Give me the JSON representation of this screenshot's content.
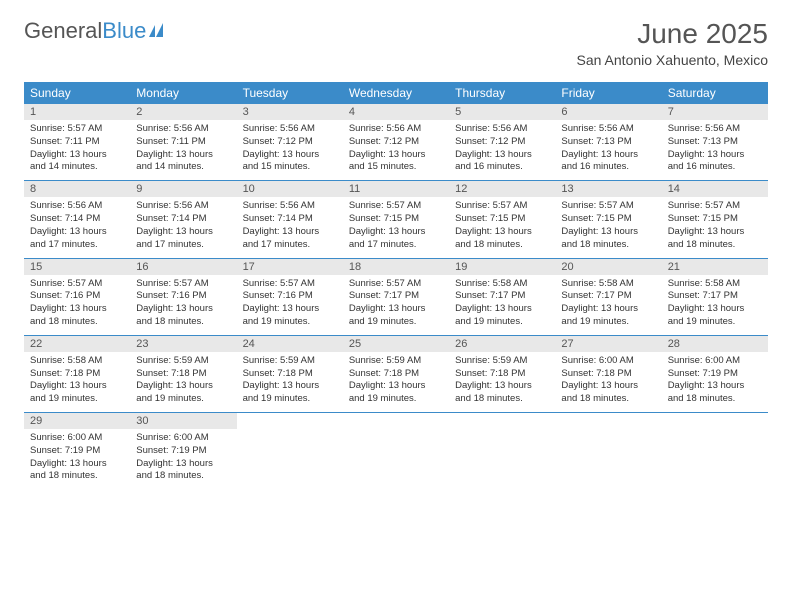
{
  "logo": {
    "text1": "General",
    "text2": "Blue",
    "icon_color": "#3b8bc9"
  },
  "header": {
    "month_title": "June 2025",
    "location": "San Antonio Xahuento, Mexico"
  },
  "colors": {
    "accent": "#3b8bc9",
    "header_bg": "#3b8bc9",
    "daynum_bg": "#e8e8e8",
    "text": "#333333"
  },
  "day_names": [
    "Sunday",
    "Monday",
    "Tuesday",
    "Wednesday",
    "Thursday",
    "Friday",
    "Saturday"
  ],
  "weeks": [
    [
      {
        "num": "1",
        "sunrise": "Sunrise: 5:57 AM",
        "sunset": "Sunset: 7:11 PM",
        "daylight": "Daylight: 13 hours and 14 minutes."
      },
      {
        "num": "2",
        "sunrise": "Sunrise: 5:56 AM",
        "sunset": "Sunset: 7:11 PM",
        "daylight": "Daylight: 13 hours and 14 minutes."
      },
      {
        "num": "3",
        "sunrise": "Sunrise: 5:56 AM",
        "sunset": "Sunset: 7:12 PM",
        "daylight": "Daylight: 13 hours and 15 minutes."
      },
      {
        "num": "4",
        "sunrise": "Sunrise: 5:56 AM",
        "sunset": "Sunset: 7:12 PM",
        "daylight": "Daylight: 13 hours and 15 minutes."
      },
      {
        "num": "5",
        "sunrise": "Sunrise: 5:56 AM",
        "sunset": "Sunset: 7:12 PM",
        "daylight": "Daylight: 13 hours and 16 minutes."
      },
      {
        "num": "6",
        "sunrise": "Sunrise: 5:56 AM",
        "sunset": "Sunset: 7:13 PM",
        "daylight": "Daylight: 13 hours and 16 minutes."
      },
      {
        "num": "7",
        "sunrise": "Sunrise: 5:56 AM",
        "sunset": "Sunset: 7:13 PM",
        "daylight": "Daylight: 13 hours and 16 minutes."
      }
    ],
    [
      {
        "num": "8",
        "sunrise": "Sunrise: 5:56 AM",
        "sunset": "Sunset: 7:14 PM",
        "daylight": "Daylight: 13 hours and 17 minutes."
      },
      {
        "num": "9",
        "sunrise": "Sunrise: 5:56 AM",
        "sunset": "Sunset: 7:14 PM",
        "daylight": "Daylight: 13 hours and 17 minutes."
      },
      {
        "num": "10",
        "sunrise": "Sunrise: 5:56 AM",
        "sunset": "Sunset: 7:14 PM",
        "daylight": "Daylight: 13 hours and 17 minutes."
      },
      {
        "num": "11",
        "sunrise": "Sunrise: 5:57 AM",
        "sunset": "Sunset: 7:15 PM",
        "daylight": "Daylight: 13 hours and 17 minutes."
      },
      {
        "num": "12",
        "sunrise": "Sunrise: 5:57 AM",
        "sunset": "Sunset: 7:15 PM",
        "daylight": "Daylight: 13 hours and 18 minutes."
      },
      {
        "num": "13",
        "sunrise": "Sunrise: 5:57 AM",
        "sunset": "Sunset: 7:15 PM",
        "daylight": "Daylight: 13 hours and 18 minutes."
      },
      {
        "num": "14",
        "sunrise": "Sunrise: 5:57 AM",
        "sunset": "Sunset: 7:15 PM",
        "daylight": "Daylight: 13 hours and 18 minutes."
      }
    ],
    [
      {
        "num": "15",
        "sunrise": "Sunrise: 5:57 AM",
        "sunset": "Sunset: 7:16 PM",
        "daylight": "Daylight: 13 hours and 18 minutes."
      },
      {
        "num": "16",
        "sunrise": "Sunrise: 5:57 AM",
        "sunset": "Sunset: 7:16 PM",
        "daylight": "Daylight: 13 hours and 18 minutes."
      },
      {
        "num": "17",
        "sunrise": "Sunrise: 5:57 AM",
        "sunset": "Sunset: 7:16 PM",
        "daylight": "Daylight: 13 hours and 19 minutes."
      },
      {
        "num": "18",
        "sunrise": "Sunrise: 5:57 AM",
        "sunset": "Sunset: 7:17 PM",
        "daylight": "Daylight: 13 hours and 19 minutes."
      },
      {
        "num": "19",
        "sunrise": "Sunrise: 5:58 AM",
        "sunset": "Sunset: 7:17 PM",
        "daylight": "Daylight: 13 hours and 19 minutes."
      },
      {
        "num": "20",
        "sunrise": "Sunrise: 5:58 AM",
        "sunset": "Sunset: 7:17 PM",
        "daylight": "Daylight: 13 hours and 19 minutes."
      },
      {
        "num": "21",
        "sunrise": "Sunrise: 5:58 AM",
        "sunset": "Sunset: 7:17 PM",
        "daylight": "Daylight: 13 hours and 19 minutes."
      }
    ],
    [
      {
        "num": "22",
        "sunrise": "Sunrise: 5:58 AM",
        "sunset": "Sunset: 7:18 PM",
        "daylight": "Daylight: 13 hours and 19 minutes."
      },
      {
        "num": "23",
        "sunrise": "Sunrise: 5:59 AM",
        "sunset": "Sunset: 7:18 PM",
        "daylight": "Daylight: 13 hours and 19 minutes."
      },
      {
        "num": "24",
        "sunrise": "Sunrise: 5:59 AM",
        "sunset": "Sunset: 7:18 PM",
        "daylight": "Daylight: 13 hours and 19 minutes."
      },
      {
        "num": "25",
        "sunrise": "Sunrise: 5:59 AM",
        "sunset": "Sunset: 7:18 PM",
        "daylight": "Daylight: 13 hours and 19 minutes."
      },
      {
        "num": "26",
        "sunrise": "Sunrise: 5:59 AM",
        "sunset": "Sunset: 7:18 PM",
        "daylight": "Daylight: 13 hours and 18 minutes."
      },
      {
        "num": "27",
        "sunrise": "Sunrise: 6:00 AM",
        "sunset": "Sunset: 7:18 PM",
        "daylight": "Daylight: 13 hours and 18 minutes."
      },
      {
        "num": "28",
        "sunrise": "Sunrise: 6:00 AM",
        "sunset": "Sunset: 7:19 PM",
        "daylight": "Daylight: 13 hours and 18 minutes."
      }
    ],
    [
      {
        "num": "29",
        "sunrise": "Sunrise: 6:00 AM",
        "sunset": "Sunset: 7:19 PM",
        "daylight": "Daylight: 13 hours and 18 minutes."
      },
      {
        "num": "30",
        "sunrise": "Sunrise: 6:00 AM",
        "sunset": "Sunset: 7:19 PM",
        "daylight": "Daylight: 13 hours and 18 minutes."
      },
      null,
      null,
      null,
      null,
      null
    ]
  ]
}
